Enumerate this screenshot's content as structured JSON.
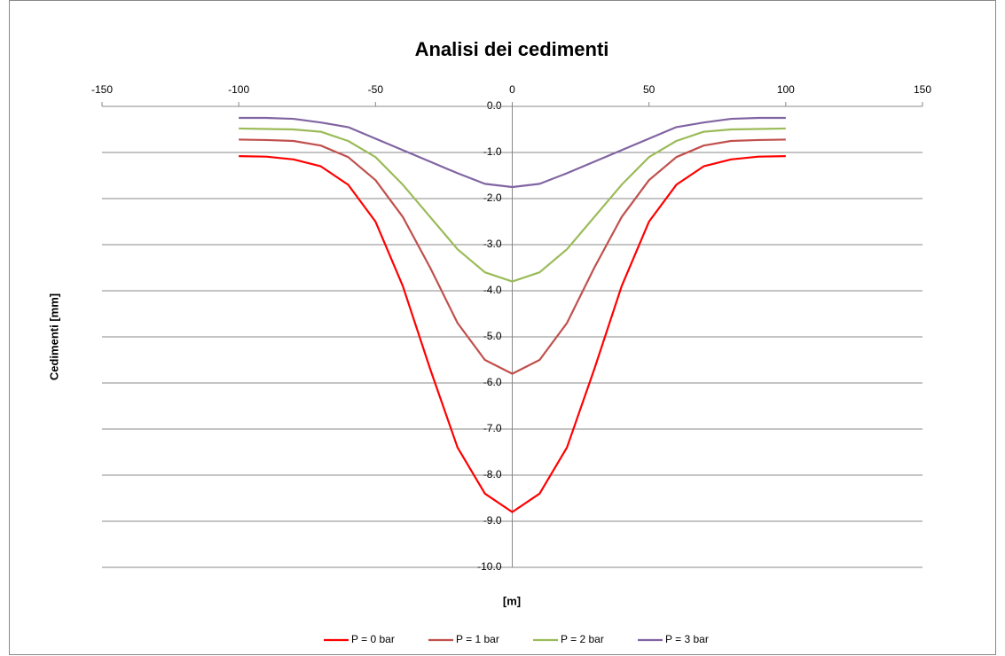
{
  "chart_data": {
    "type": "line",
    "title": "Analisi dei cedimenti",
    "x_label": "[m]",
    "y_label": "Cedimenti [mm]",
    "x": [
      -100,
      -90,
      -80,
      -70,
      -60,
      -50,
      -40,
      -30,
      -20,
      -10,
      0,
      10,
      20,
      30,
      40,
      50,
      60,
      70,
      80,
      90,
      100
    ],
    "series": [
      {
        "name": "P = 0 bar",
        "color": "#ff0000",
        "values": [
          -1.08,
          -1.09,
          -1.15,
          -1.3,
          -1.7,
          -2.5,
          -3.9,
          -5.7,
          -7.4,
          -8.4,
          -8.8,
          -8.4,
          -7.4,
          -5.7,
          -3.9,
          -2.5,
          -1.7,
          -1.3,
          -1.15,
          -1.09,
          -1.08
        ]
      },
      {
        "name": "P = 1 bar",
        "color": "#c0504d",
        "values": [
          -0.72,
          -0.73,
          -0.75,
          -0.85,
          -1.1,
          -1.6,
          -2.4,
          -3.5,
          -4.7,
          -5.5,
          -5.8,
          -5.5,
          -4.7,
          -3.5,
          -2.4,
          -1.6,
          -1.1,
          -0.85,
          -0.75,
          -0.73,
          -0.72
        ]
      },
      {
        "name": "P = 2 bar",
        "color": "#9bbb59",
        "values": [
          -0.48,
          -0.49,
          -0.5,
          -0.55,
          -0.75,
          -1.1,
          -1.7,
          -2.4,
          -3.1,
          -3.6,
          -3.8,
          -3.6,
          -3.1,
          -2.4,
          -1.7,
          -1.1,
          -0.75,
          -0.55,
          -0.5,
          -0.49,
          -0.48
        ]
      },
      {
        "name": "P = 3 bar",
        "color": "#8064a2",
        "values": [
          -0.25,
          -0.25,
          -0.27,
          -0.35,
          -0.45,
          -0.7,
          -0.95,
          -1.2,
          -1.45,
          -1.68,
          -1.75,
          -1.68,
          -1.45,
          -1.2,
          -0.95,
          -0.7,
          -0.45,
          -0.35,
          -0.27,
          -0.25,
          -0.25
        ]
      }
    ],
    "xlim": [
      -150,
      150
    ],
    "xticks": [
      -150,
      -100,
      -50,
      0,
      50,
      100,
      150
    ],
    "ylim": [
      -10,
      0
    ],
    "yticks": [
      {
        "value": 0,
        "label": "0.0"
      },
      {
        "value": -1,
        "label": "-1.0"
      },
      {
        "value": -2,
        "label": "-2.0"
      },
      {
        "value": -3,
        "label": "-3.0"
      },
      {
        "value": -4,
        "label": "-4.0"
      },
      {
        "value": -5,
        "label": "-5.0"
      },
      {
        "value": -6,
        "label": "-6.0"
      },
      {
        "value": -7,
        "label": "-7.0"
      },
      {
        "value": -8,
        "label": "-8.0"
      },
      {
        "value": -9,
        "label": "-9.0"
      },
      {
        "value": -10,
        "label": "-10.0"
      }
    ],
    "grid": true,
    "legend": "bottom"
  }
}
